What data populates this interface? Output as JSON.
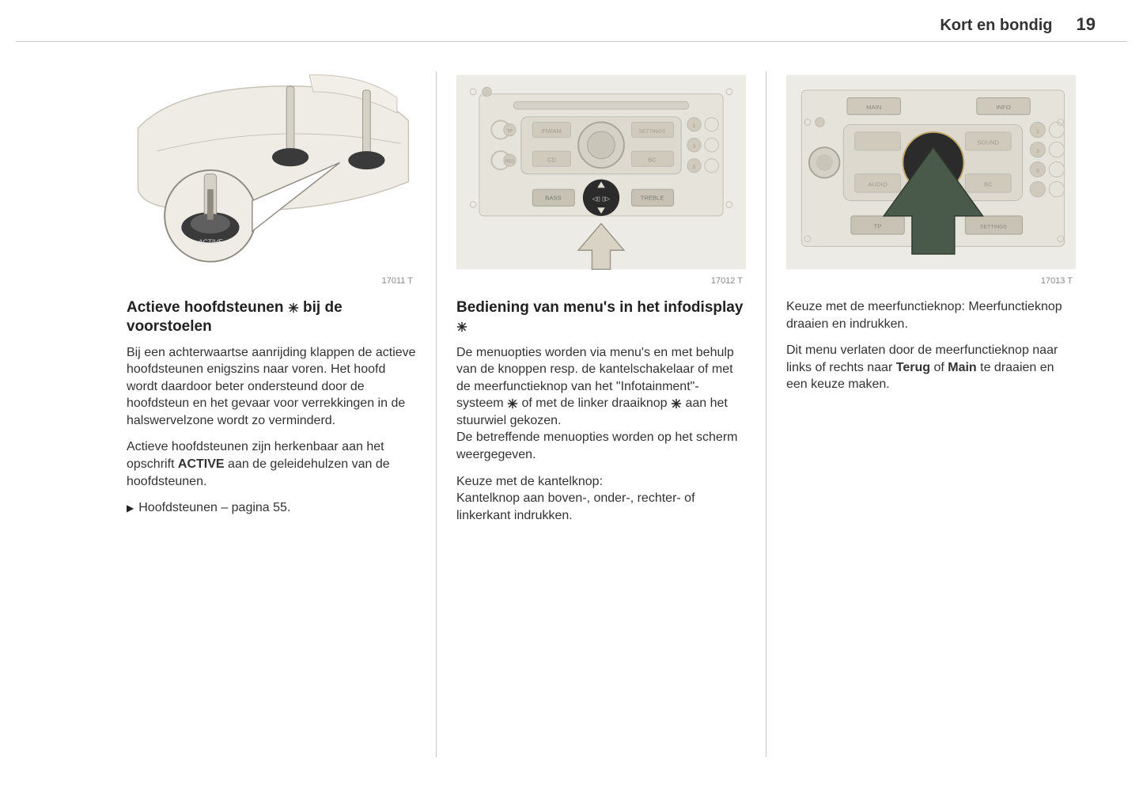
{
  "header": {
    "section": "Kort en bondig",
    "page_number": "19"
  },
  "columns": [
    {
      "caption": "17011 T",
      "heading_parts": [
        "Actieve hoofdsteunen ",
        "STAR",
        " bij de voorstoelen"
      ],
      "paragraphs": [
        "Bij een achterwaartse aanrijding klappen de actieve hoofdsteunen enigszins naar voren. Het hoofd wordt daardoor beter ondersteund door de hoofdsteun en het gevaar voor verrekkingen in de halswervelzone wordt zo verminderd.",
        "Actieve hoofdsteunen zijn herkenbaar aan het opschrift <b>ACTIVE</b> aan de geleidehulzen van de hoofdsteunen."
      ],
      "reference": "Hoofdsteunen – pagina 55."
    },
    {
      "caption": "17012 T",
      "heading_parts": [
        "Bediening van menu's in het infodisplay ",
        "STAR"
      ],
      "paragraphs": [
        "De menuopties worden via menu's en met behulp van de knoppen resp. de kantelschakelaar of met de meerfunctieknop van het \"Infotainment\"-systeem STAR of met de linker draaiknop STAR aan het stuurwiel gekozen.<br>De betreffende menuopties worden op het scherm weergegeven.",
        "Keuze met de kantelknop:<br>Kantelknop aan boven-, onder-, rechter- of linkerkant indrukken."
      ]
    },
    {
      "caption": "17013 T",
      "paragraphs": [
        "Keuze met de meerfunctieknop: Meerfunctieknop draaien en indrukken.",
        "Dit menu verlaten door de meerfunctieknop naar links of rechts naar <b>Terug</b> of <b>Main</b> te draaien en een keuze maken."
      ]
    }
  ],
  "style": {
    "body_bg": "#ffffff",
    "text_color": "#333333",
    "rule_color": "#c8c8c8",
    "caption_color": "#888888",
    "heading_fontsize": 19,
    "body_fontsize": 16,
    "caption_fontsize": 11,
    "star_icon": "snowflake-like asterisk glyph",
    "figure": {
      "panel_fill": "#e9e7e2",
      "panel_stroke": "#bdbbb5",
      "arrow_fill_light": "#d8d3c5",
      "arrow_fill_dark": "#4a5a4a",
      "knob_dark": "#2b2b2b",
      "radio_button_fill": "#d6d1c6"
    }
  }
}
